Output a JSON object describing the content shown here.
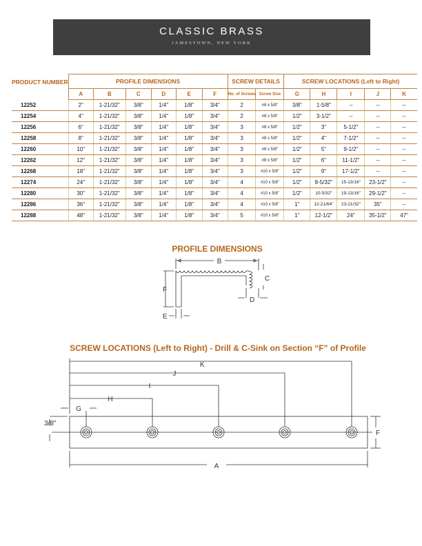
{
  "header": {
    "brand": "CLASSIC BRASS",
    "location": "JAMESTOWN, NEW YORK"
  },
  "table": {
    "product_header": "PRODUCT NUMBER",
    "groups": {
      "profile": "PROFILE DIMENSIONS",
      "screw_details": "SCREW DETAILS",
      "screw_locations": "SCREW LOCATIONS (Left to Right)"
    },
    "columns": [
      "A",
      "B",
      "C",
      "D",
      "E",
      "F",
      "No. of Screws",
      "Screw Size",
      "G",
      "H",
      "I",
      "J",
      "K"
    ],
    "rows": [
      [
        "12252",
        "2\"",
        "1-21/32\"",
        "3/8\"",
        "1/4\"",
        "1/8\"",
        "3/4\"",
        "2",
        "#8 x 5/8\"",
        "3/8\"",
        "1-5/8\"",
        "--",
        "--",
        "--"
      ],
      [
        "12254",
        "4\"",
        "1-21/32\"",
        "3/8\"",
        "1/4\"",
        "1/8\"",
        "3/4\"",
        "2",
        "#8 x 5/8\"",
        "1/2\"",
        "3-1/2\"",
        "--",
        "--",
        "--"
      ],
      [
        "12256",
        "6\"",
        "1-21/32\"",
        "3/8\"",
        "1/4\"",
        "1/8\"",
        "3/4\"",
        "3",
        "#8 x 5/8\"",
        "1/2\"",
        "3\"",
        "5-1/2\"",
        "--",
        "--"
      ],
      [
        "12258",
        "8\"",
        "1-21/32\"",
        "3/8\"",
        "1/4\"",
        "1/8\"",
        "3/4\"",
        "3",
        "#8 x 5/8\"",
        "1/2\"",
        "4\"",
        "7-1/2\"",
        "--",
        "--"
      ],
      [
        "12260",
        "10\"",
        "1-21/32\"",
        "3/8\"",
        "1/4\"",
        "1/8\"",
        "3/4\"",
        "3",
        "#8 x 5/8\"",
        "1/2\"",
        "5\"",
        "9-1/2\"",
        "--",
        "--"
      ],
      [
        "12262",
        "12\"",
        "1-21/32\"",
        "3/8\"",
        "1/4\"",
        "1/8\"",
        "3/4\"",
        "3",
        "#8 x 5/8\"",
        "1/2\"",
        "6\"",
        "11-1/2\"",
        "--",
        "--"
      ],
      [
        "12268",
        "18\"",
        "1-21/32\"",
        "3/8\"",
        "1/4\"",
        "1/8\"",
        "3/4\"",
        "3",
        "#10 x 5/8\"",
        "1/2\"",
        "9\"",
        "17-1/2\"",
        "--",
        "--"
      ],
      [
        "12274",
        "24\"",
        "1-21/32\"",
        "3/8\"",
        "1/4\"",
        "1/8\"",
        "3/4\"",
        "4",
        "#10 x 5/8\"",
        "1/2\"",
        "8-5/32\"",
        "15-13/16\"",
        "23-1/2\"",
        "--"
      ],
      [
        "12280",
        "30\"",
        "1-21/32\"",
        "3/8\"",
        "1/4\"",
        "1/8\"",
        "3/4\"",
        "4",
        "#10 x 5/8\"",
        "1/2\"",
        "10-5/32\"",
        "19-13/16\"",
        "29-1/2\"",
        "--"
      ],
      [
        "12286",
        "36\"",
        "1-21/32\"",
        "3/8\"",
        "1/4\"",
        "1/8\"",
        "3/4\"",
        "4",
        "#10 x 5/8\"",
        "1\"",
        "12-21/64\"",
        "23-21/32\"",
        "35\"",
        "--"
      ],
      [
        "12288",
        "48\"",
        "1-21/32\"",
        "3/8\"",
        "1/4\"",
        "1/8\"",
        "3/4\"",
        "5",
        "#10 x 5/8\"",
        "1\"",
        "12-1/2\"",
        "24\"",
        "35-1/2\"",
        "47\""
      ]
    ]
  },
  "profile_diagram": {
    "title": "PROFILE DIMENSIONS",
    "labels": {
      "B": "B",
      "C": "C",
      "D": "D",
      "E": "E",
      "F": "F"
    }
  },
  "screw_diagram": {
    "title": "SCREW LOCATIONS (Left to Right) - Drill & C-Sink on Section “F” of Profile",
    "labels": {
      "K": "K",
      "J": "J",
      "I": "I",
      "H": "H",
      "G": "G",
      "A": "A",
      "F": "F",
      "offset": "3/8\""
    }
  },
  "colors": {
    "accent": "#b5651d",
    "banner": "#3f3f3f"
  }
}
